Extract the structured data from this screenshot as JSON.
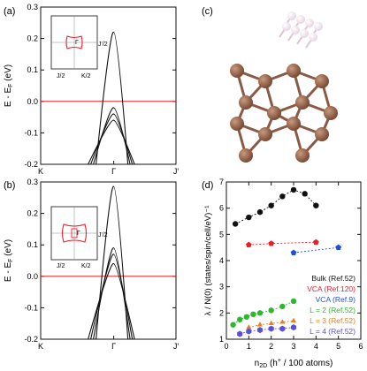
{
  "panels": {
    "a": {
      "label": "(a)"
    },
    "b": {
      "label": "(b)"
    },
    "c": {
      "label": "(c)"
    },
    "d": {
      "label": "(d)"
    }
  },
  "colors": {
    "fermi_line": "#e8202a",
    "band": "#111111",
    "atom_carbon": "#7a4a34",
    "atom_carbon_highlight": "#c89a7e",
    "atom_hydrogen": "#e8d4e4",
    "bond": "#8a5a44",
    "bz_outline": "#e8202a"
  },
  "chart_data": [
    {
      "panel": "a",
      "type": "line",
      "ylabel": "E - Eₓ (eV)",
      "ylabel_main": "E - E",
      "ylabel_sub": "F",
      "ylabel_unit": " (eV)",
      "ylim": [
        -0.2,
        0.3
      ],
      "yticks": [
        "0.3",
        "0.2",
        "0.1",
        "0.0",
        "-0.1",
        "-0.2"
      ],
      "ytick_values": [
        0.3,
        0.2,
        0.1,
        0.0,
        -0.1,
        -0.2
      ],
      "xtick_labels": [
        "K",
        "Γ",
        "J'"
      ],
      "fermi_level": 0.0,
      "band_tops": [
        0.22,
        -0.02,
        -0.04,
        -0.06
      ],
      "inset": {
        "labels": [
          "J'/2",
          "J/2",
          "K/2",
          "Γ"
        ]
      }
    },
    {
      "panel": "b",
      "type": "line",
      "ylabel_main": "E - E",
      "ylabel_sub": "F",
      "ylabel_unit": " (eV)",
      "ylim": [
        -0.2,
        0.3
      ],
      "yticks": [
        "0.3",
        "0.2",
        "0.1",
        "0.0",
        "-0.1",
        "-0.2"
      ],
      "ytick_values": [
        0.3,
        0.2,
        0.1,
        0.0,
        -0.1,
        -0.2
      ],
      "xtick_labels": [
        "K",
        "Γ",
        "J'"
      ],
      "fermi_level": 0.0,
      "band_tops": [
        0.285,
        0.09,
        0.07,
        0.04
      ],
      "inset": {
        "labels": [
          "J'/2",
          "J/2",
          "K/2",
          "Γ"
        ]
      }
    },
    {
      "panel": "d",
      "type": "scatter",
      "xlabel_main": "n",
      "xlabel_sub": "2D",
      "xlabel_rest": " (h",
      "xlabel_sup": "+",
      "xlabel_end": " / 100 atoms)",
      "ylabel": "λ / N(0) (states/spin/cell/eV)⁻¹",
      "xlim": [
        0,
        6
      ],
      "ylim": [
        1,
        7
      ],
      "xticks": [
        0,
        1,
        2,
        3,
        4,
        5,
        6
      ],
      "yticks": [
        1,
        2,
        3,
        4,
        5,
        6,
        7
      ],
      "grid": false,
      "legend_position": "right",
      "series": [
        {
          "name": "Bulk (Ref.52)",
          "color": "#111111",
          "marker": "circle",
          "x": [
            0.4,
            1.0,
            1.5,
            2.0,
            2.5,
            3.0,
            3.5,
            4.0
          ],
          "y": [
            5.4,
            5.65,
            5.85,
            6.1,
            6.45,
            6.7,
            6.55,
            6.1
          ]
        },
        {
          "name": "VCA (Ref.120)",
          "color": "#e8202a",
          "marker": "pentagon",
          "x": [
            1.0,
            2.0,
            4.0
          ],
          "y": [
            4.6,
            4.65,
            4.7
          ]
        },
        {
          "name": "VCA (Ref.9)",
          "color": "#1f4fe0",
          "marker": "pentagon",
          "x": [
            3.0,
            5.0
          ],
          "y": [
            4.3,
            4.5
          ]
        },
        {
          "name": "L = 2 (Ref.52)",
          "color": "#2eb82e",
          "marker": "circle",
          "x": [
            0.3,
            0.6,
            0.9,
            1.2,
            1.5,
            2.0,
            2.5,
            3.0
          ],
          "y": [
            1.55,
            1.75,
            1.85,
            1.95,
            2.0,
            2.1,
            2.25,
            2.45
          ]
        },
        {
          "name": "L = 3 (Ref.52)",
          "color": "#f07c1a",
          "marker": "triangle",
          "x": [
            1.0,
            1.5,
            2.0,
            2.5,
            3.0
          ],
          "y": [
            1.45,
            1.55,
            1.6,
            1.65,
            1.7
          ]
        },
        {
          "name": "L = 4 (Ref.52)",
          "color": "#5b4fd6",
          "marker": "hexagon",
          "x": [
            0.6,
            1.0,
            1.5,
            2.0,
            2.5,
            3.0
          ],
          "y": [
            1.2,
            1.3,
            1.35,
            1.4,
            1.4,
            1.45
          ]
        }
      ]
    }
  ]
}
